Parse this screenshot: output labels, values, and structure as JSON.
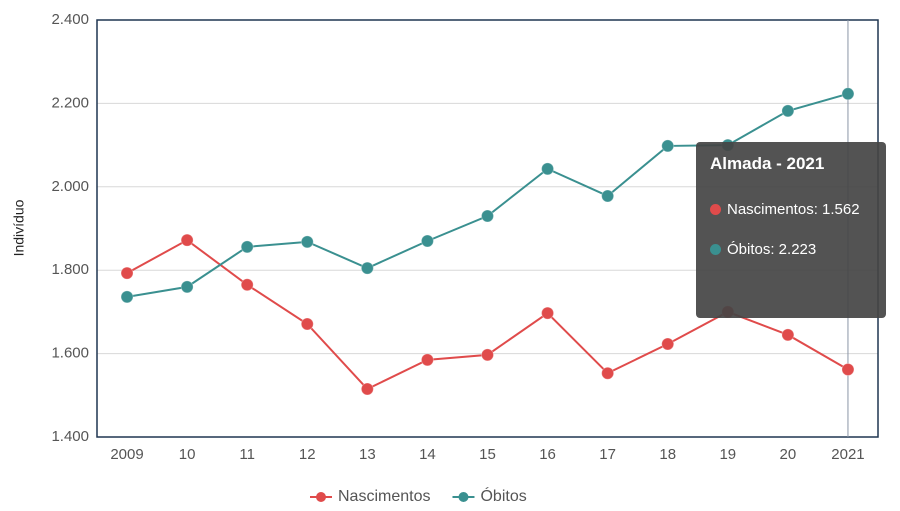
{
  "chart_data": {
    "type": "line",
    "y_label": "Indivíduo",
    "categories": [
      "2009",
      "10",
      "11",
      "12",
      "13",
      "14",
      "15",
      "16",
      "17",
      "18",
      "19",
      "20",
      "2021"
    ],
    "series": [
      {
        "name": "Nascimentos",
        "color": "#e04b4b",
        "values": [
          1793,
          1872,
          1765,
          1671,
          1515,
          1585,
          1597,
          1697,
          1553,
          1623,
          1700,
          1645,
          1562
        ]
      },
      {
        "name": "Óbitos",
        "color": "#3a9090",
        "values": [
          1736,
          1760,
          1856,
          1868,
          1805,
          1870,
          1930,
          2043,
          1978,
          2098,
          2100,
          2182,
          2223
        ]
      }
    ],
    "ylim": [
      1400,
      2400
    ],
    "yticks": [
      {
        "value": 1400,
        "label": "1.400"
      },
      {
        "value": 1600,
        "label": "1.600"
      },
      {
        "value": 1800,
        "label": "1.800"
      },
      {
        "value": 2000,
        "label": "2.000"
      },
      {
        "value": 2200,
        "label": "2.200"
      },
      {
        "value": 2400,
        "label": "2.400"
      }
    ],
    "grid": true,
    "legend": "bottom",
    "tooltip": {
      "title": "Almada - 2021",
      "lines": [
        "Nascimentos: 1.562",
        "Óbitos: 2.223"
      ]
    }
  }
}
